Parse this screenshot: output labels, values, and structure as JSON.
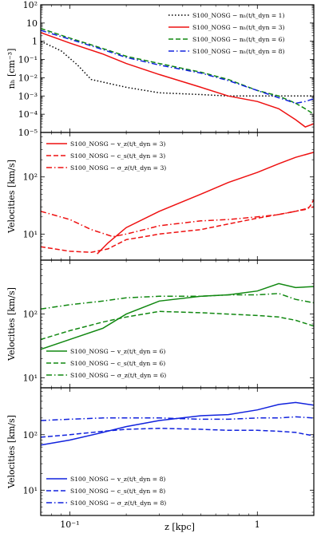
{
  "figure": {
    "xlabel": "z [kpc]",
    "x_ticks": [
      {
        "v": 0.1,
        "label": "10⁻¹"
      },
      {
        "v": 1,
        "label": "1"
      }
    ]
  },
  "chart_data": [
    {
      "type": "line",
      "ylabel": "nₕ [cm⁻³]",
      "xscale": "log",
      "yscale": "log",
      "xlim": [
        0.07,
        2.0
      ],
      "ylim": [
        1e-05,
        100
      ],
      "legend_position": "top-right",
      "y_ticks": [
        {
          "v": 100,
          "label": "10²"
        },
        {
          "v": 10,
          "label": "10"
        },
        {
          "v": 1,
          "label": "1"
        },
        {
          "v": 0.1,
          "label": "10⁻¹"
        },
        {
          "v": 0.01,
          "label": "10⁻²"
        },
        {
          "v": 0.001,
          "label": "10⁻³"
        },
        {
          "v": 0.0001,
          "label": "10⁻⁴"
        },
        {
          "v": 1e-05,
          "label": "10⁻⁵"
        }
      ],
      "series": [
        {
          "name": "S100_NOSG − nₕ(t/t_dyn = 1)",
          "color": "#000000",
          "dash": "dotted",
          "x": [
            0.07,
            0.09,
            0.11,
            0.13,
            0.2,
            0.3,
            0.5,
            0.7,
            1.0,
            1.5,
            2.0
          ],
          "y": [
            1.0,
            0.3,
            0.05,
            0.008,
            0.003,
            0.0015,
            0.0012,
            0.001,
            0.001,
            0.001,
            0.001
          ]
        },
        {
          "name": "S100_NOSG − nₕ(t/t_dyn = 3)",
          "color": "#ee1111",
          "dash": "solid",
          "x": [
            0.07,
            0.1,
            0.15,
            0.2,
            0.3,
            0.5,
            0.7,
            1.0,
            1.3,
            1.6,
            1.8,
            2.0
          ],
          "y": [
            3.0,
            0.8,
            0.2,
            0.06,
            0.015,
            0.003,
            0.001,
            0.0005,
            0.0002,
            5e-05,
            2e-05,
            3e-05
          ]
        },
        {
          "name": "S100_NOSG − nₕ(t/t_dyn = 6)",
          "color": "#118811",
          "dash": "dashed",
          "x": [
            0.07,
            0.1,
            0.15,
            0.2,
            0.3,
            0.5,
            0.7,
            1.0,
            1.3,
            1.6,
            1.8,
            2.0
          ],
          "y": [
            5.0,
            1.5,
            0.4,
            0.15,
            0.06,
            0.02,
            0.008,
            0.002,
            0.001,
            0.0004,
            0.0002,
            0.0001
          ]
        },
        {
          "name": "S100_NOSG − nₕ(t/t_dyn = 8)",
          "color": "#1122dd",
          "dash": "dashdot",
          "x": [
            0.07,
            0.1,
            0.15,
            0.2,
            0.3,
            0.5,
            0.7,
            1.0,
            1.3,
            1.6,
            1.8,
            2.0
          ],
          "y": [
            4.0,
            1.3,
            0.35,
            0.13,
            0.05,
            0.018,
            0.007,
            0.002,
            0.0008,
            0.0004,
            0.0005,
            0.0007
          ]
        }
      ]
    },
    {
      "type": "line",
      "ylabel": "Velocities [km/s]",
      "xscale": "log",
      "yscale": "log",
      "xlim": [
        0.07,
        2.0
      ],
      "ylim": [
        3.5,
        600
      ],
      "legend_position": "top-left",
      "y_ticks": [
        {
          "v": 100,
          "label": "10²"
        },
        {
          "v": 10,
          "label": "10¹"
        }
      ],
      "series": [
        {
          "name": "S100_NOSG − v_z(t/t_dyn = 3)",
          "color": "#ee1111",
          "dash": "solid",
          "x": [
            0.14,
            0.16,
            0.2,
            0.3,
            0.5,
            0.7,
            1.0,
            1.3,
            1.6,
            2.0
          ],
          "y": [
            4.5,
            7,
            13,
            25,
            50,
            80,
            120,
            170,
            220,
            270
          ]
        },
        {
          "name": "S100_NOSG − c_s(t/t_dyn = 3)",
          "color": "#ee1111",
          "dash": "dashed",
          "x": [
            0.07,
            0.1,
            0.13,
            0.16,
            0.2,
            0.25,
            0.3,
            0.5,
            0.7,
            1.0,
            1.3,
            1.6,
            1.8,
            1.9,
            2.0
          ],
          "y": [
            6.0,
            5.0,
            4.8,
            5.5,
            8.0,
            9.0,
            10,
            12,
            15,
            19,
            22,
            25,
            27,
            30,
            40
          ]
        },
        {
          "name": "S100_NOSG − σ_z(t/t_dyn = 3)",
          "color": "#ee1111",
          "dash": "dashdot",
          "x": [
            0.07,
            0.1,
            0.13,
            0.17,
            0.2,
            0.25,
            0.3,
            0.5,
            0.7,
            1.0,
            1.3,
            1.6,
            2.0
          ],
          "y": [
            25,
            18,
            12,
            9.0,
            10,
            12,
            14,
            17,
            18,
            20,
            22,
            25,
            30
          ]
        }
      ]
    },
    {
      "type": "line",
      "ylabel": "Velocities [km/s]",
      "xscale": "log",
      "yscale": "log",
      "xlim": [
        0.07,
        2.0
      ],
      "ylim": [
        7,
        700
      ],
      "legend_position": "bottom-left",
      "y_ticks": [
        {
          "v": 100,
          "label": "10²"
        },
        {
          "v": 10,
          "label": "10¹"
        }
      ],
      "series": [
        {
          "name": "S100_NOSG − v_z(t/t_dyn = 6)",
          "color": "#118811",
          "dash": "solid",
          "x": [
            0.07,
            0.1,
            0.15,
            0.2,
            0.3,
            0.5,
            0.7,
            1.0,
            1.3,
            1.6,
            2.0
          ],
          "y": [
            28,
            40,
            60,
            100,
            160,
            190,
            200,
            230,
            300,
            260,
            270
          ]
        },
        {
          "name": "S100_NOSG − c_s(t/t_dyn = 6)",
          "color": "#118811",
          "dash": "dashed",
          "x": [
            0.07,
            0.1,
            0.15,
            0.2,
            0.3,
            0.5,
            0.7,
            1.0,
            1.3,
            1.6,
            2.0
          ],
          "y": [
            40,
            55,
            75,
            90,
            110,
            105,
            100,
            95,
            90,
            80,
            65
          ]
        },
        {
          "name": "S100_NOSG − σ_z(t/t_dyn = 6)",
          "color": "#118811",
          "dash": "dashdot",
          "x": [
            0.07,
            0.1,
            0.15,
            0.2,
            0.3,
            0.5,
            0.7,
            1.0,
            1.3,
            1.6,
            2.0
          ],
          "y": [
            120,
            140,
            160,
            180,
            190,
            190,
            200,
            200,
            210,
            170,
            150
          ]
        }
      ]
    },
    {
      "type": "line",
      "ylabel": "Velocities [km/s]",
      "xscale": "log",
      "yscale": "log",
      "xlim": [
        0.07,
        2.0
      ],
      "ylim": [
        3.5,
        700
      ],
      "legend_position": "bottom-left",
      "y_ticks": [
        {
          "v": 100,
          "label": "10²"
        },
        {
          "v": 10,
          "label": "10¹"
        }
      ],
      "series": [
        {
          "name": "S100_NOSG − v_z(t/t_dyn = 8)",
          "color": "#1122dd",
          "dash": "solid",
          "x": [
            0.07,
            0.1,
            0.15,
            0.2,
            0.3,
            0.5,
            0.7,
            1.0,
            1.3,
            1.6,
            2.0
          ],
          "y": [
            65,
            80,
            110,
            140,
            180,
            220,
            230,
            280,
            350,
            380,
            340
          ]
        },
        {
          "name": "S100_NOSG − c_s(t/t_dyn = 8)",
          "color": "#1122dd",
          "dash": "dashed",
          "x": [
            0.07,
            0.1,
            0.15,
            0.2,
            0.3,
            0.5,
            0.7,
            1.0,
            1.3,
            1.6,
            2.0
          ],
          "y": [
            90,
            100,
            115,
            125,
            130,
            125,
            120,
            120,
            115,
            110,
            95
          ]
        },
        {
          "name": "S100_NOSG − σ_z(t/t_dyn = 8)",
          "color": "#1122dd",
          "dash": "dashdot",
          "x": [
            0.07,
            0.1,
            0.15,
            0.2,
            0.3,
            0.5,
            0.7,
            1.0,
            1.3,
            1.6,
            2.0
          ],
          "y": [
            180,
            190,
            200,
            200,
            200,
            190,
            190,
            200,
            200,
            210,
            200
          ]
        }
      ]
    }
  ]
}
